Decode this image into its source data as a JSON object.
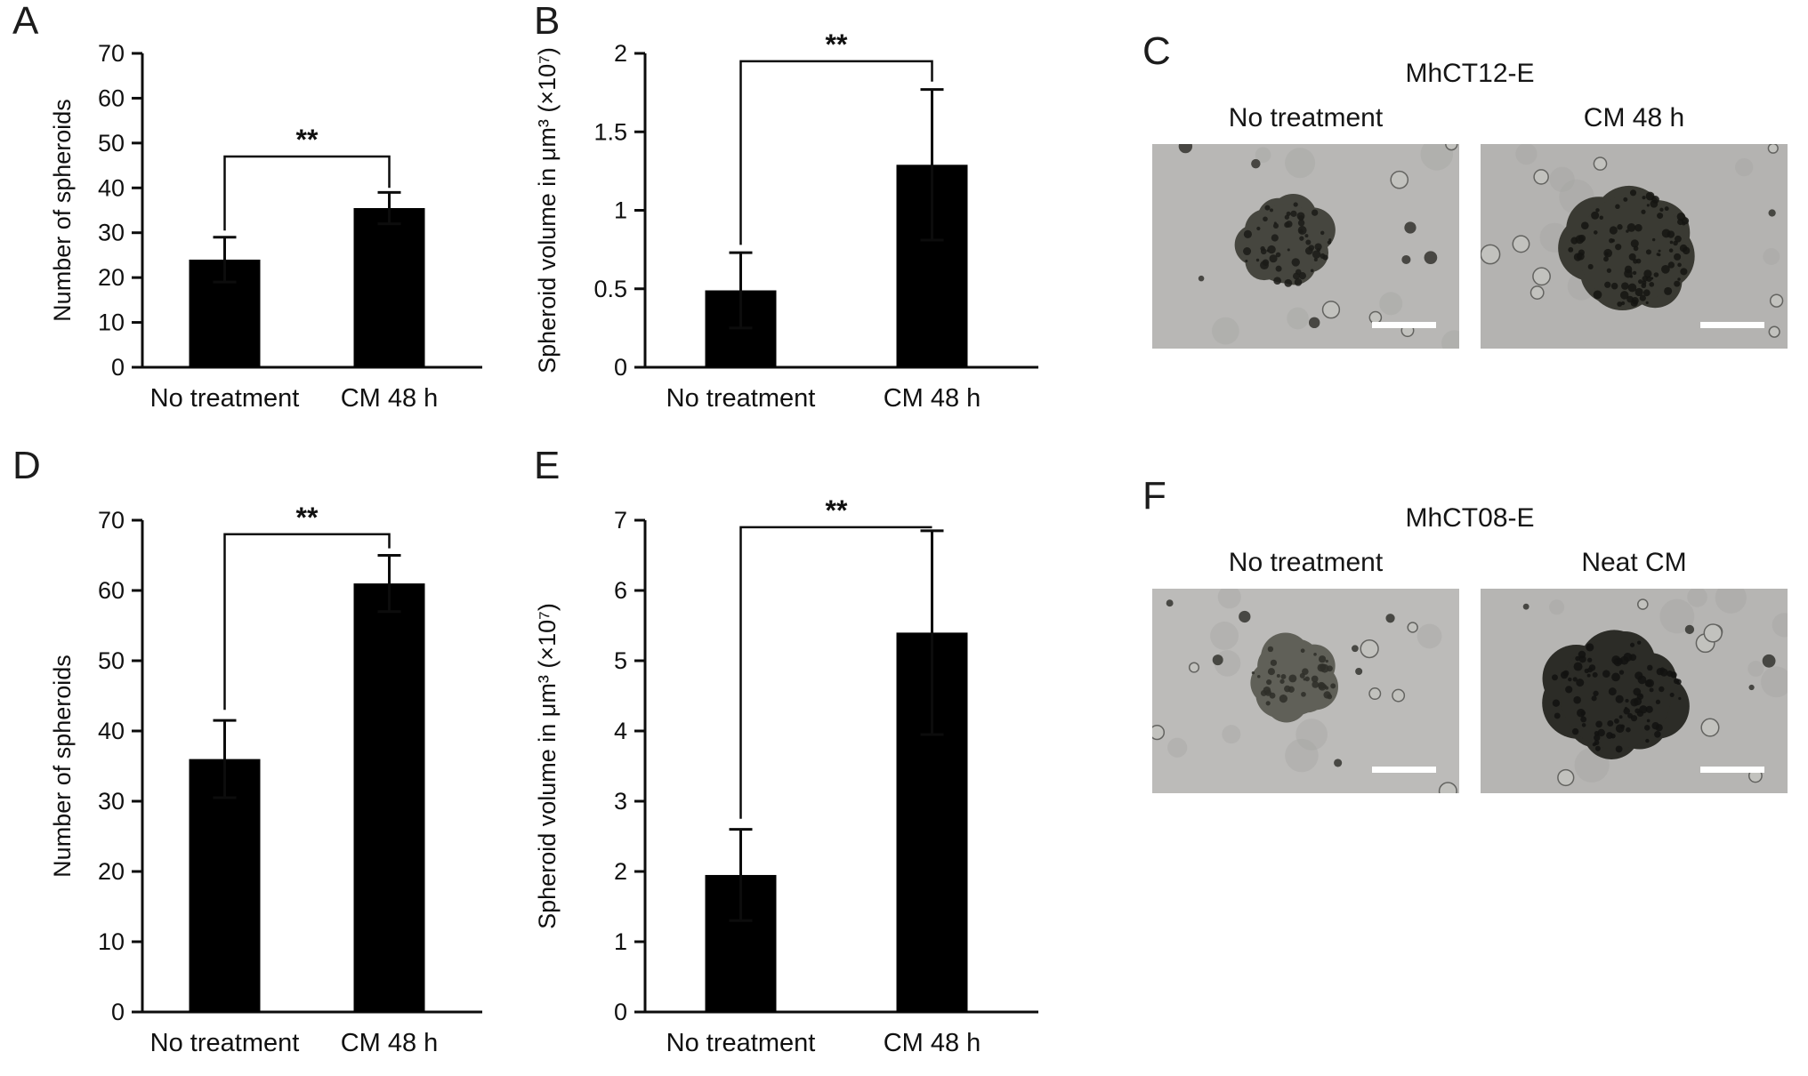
{
  "panels": {
    "A": {
      "letter": "A"
    },
    "B": {
      "letter": "B"
    },
    "C": {
      "letter": "C"
    },
    "D": {
      "letter": "D"
    },
    "E": {
      "letter": "E"
    },
    "F": {
      "letter": "F"
    }
  },
  "chart_data": [
    {
      "panel": "A",
      "type": "bar",
      "categories": [
        "No treatment",
        "CM 48 h"
      ],
      "values": [
        24,
        35.5
      ],
      "errors": [
        5,
        3.5
      ],
      "ylabel": "Number of spheroids",
      "xlabel": "",
      "ylim": [
        0,
        70
      ],
      "yticks": [
        0,
        10,
        20,
        30,
        40,
        50,
        60,
        70
      ],
      "ytick_labels": [
        "0",
        "10",
        "20",
        "30",
        "40",
        "50",
        "60",
        "70"
      ],
      "bar_color": "#000000",
      "significance": {
        "label": "**",
        "bracket_y": 47,
        "left_drop_to": 30.5,
        "right_drop_to": 40
      }
    },
    {
      "panel": "B",
      "type": "bar",
      "categories": [
        "No treatment",
        "CM 48 h"
      ],
      "values": [
        0.49,
        1.29
      ],
      "errors": [
        0.24,
        0.48
      ],
      "ylabel": "Spheroid volume in μm³ (×10⁷)",
      "xlabel": "",
      "ylim": [
        0,
        2
      ],
      "yticks": [
        0,
        0.5,
        1,
        1.5,
        2
      ],
      "ytick_labels": [
        "0",
        "0.5",
        "1",
        "1.5",
        "2"
      ],
      "bar_color": "#000000",
      "significance": {
        "label": "**",
        "bracket_y": 1.95,
        "left_drop_to": 0.78,
        "right_drop_to": 1.82
      }
    },
    {
      "panel": "D",
      "type": "bar",
      "categories": [
        "No treatment",
        "CM 48 h"
      ],
      "values": [
        36,
        61
      ],
      "errors": [
        5.5,
        4
      ],
      "ylabel": "Number of spheroids",
      "xlabel": "",
      "ylim": [
        0,
        70
      ],
      "yticks": [
        0,
        10,
        20,
        30,
        40,
        50,
        60,
        70
      ],
      "ytick_labels": [
        "0",
        "10",
        "20",
        "30",
        "40",
        "50",
        "60",
        "70"
      ],
      "bar_color": "#000000",
      "significance": {
        "label": "**",
        "bracket_y": 68,
        "left_drop_to": 43,
        "right_drop_to": 66
      }
    },
    {
      "panel": "E",
      "type": "bar",
      "categories": [
        "No treatment",
        "CM 48 h"
      ],
      "values": [
        1.95,
        5.4
      ],
      "errors": [
        0.65,
        1.45
      ],
      "ylabel": "Spheroid volume in μm³ (×10⁷)",
      "xlabel": "",
      "ylim": [
        0,
        7
      ],
      "yticks": [
        0,
        1,
        2,
        3,
        4,
        5,
        6,
        7
      ],
      "ytick_labels": [
        "0",
        "1",
        "2",
        "3",
        "4",
        "5",
        "6",
        "7"
      ],
      "bar_color": "#000000",
      "significance": {
        "label": "**",
        "bracket_y": 6.9,
        "left_drop_to": 2.75,
        "right_drop_to": 6.9
      }
    }
  ],
  "micro_panels": {
    "C": {
      "title": "MhCT12-E",
      "images": [
        {
          "label": "No treatment"
        },
        {
          "label": "CM 48 h"
        }
      ]
    },
    "F": {
      "title": "MhCT08-E",
      "images": [
        {
          "label": "No treatment"
        },
        {
          "label": "Neat CM"
        }
      ]
    }
  }
}
